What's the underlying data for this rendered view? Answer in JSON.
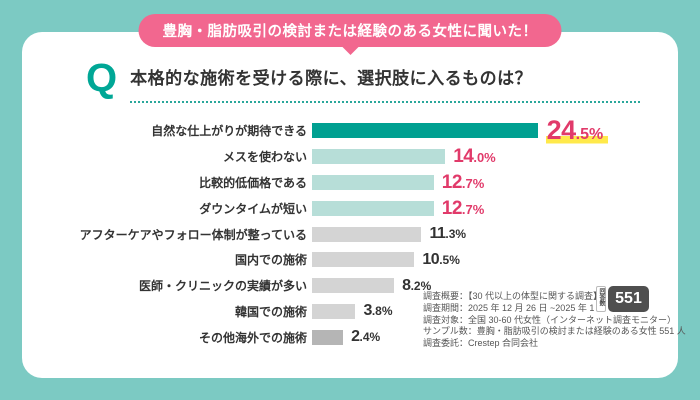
{
  "badge": {
    "label": "豊胸・脂肪吸引の検討または経験のある女性に聞いた！"
  },
  "question": {
    "mark": "Q",
    "text": "本格的な施術を受ける際に、選択肢に入るものは？"
  },
  "chart_data": {
    "type": "bar",
    "orientation": "horizontal",
    "unit": "%",
    "xlim": [
      0,
      25
    ],
    "categories": [
      "自然な仕上がりが期待できる",
      "メスを使わない",
      "比較的低価格である",
      "ダウンタイムが短い",
      "アフターケアやフォロー体制が整っている",
      "国内での施術",
      "医師・クリニックの実績が多い",
      "韓国での施術",
      "その他海外での施術"
    ],
    "values": [
      24.5,
      14.0,
      12.7,
      12.7,
      11.3,
      10.5,
      8.2,
      3.8,
      2.4
    ],
    "emphasis": [
      "primary",
      "secondary",
      "secondary",
      "secondary",
      "neutral",
      "neutral",
      "neutral",
      "neutral",
      "neutral-dark"
    ],
    "legend": "none",
    "grid": false
  },
  "palette": {
    "background_teal": "#7CCAC3",
    "card_white": "#FFFFFF",
    "badge_pink": "#F2678F",
    "accent_teal": "#00A796",
    "bar_primary": "#00A091",
    "bar_secondary": "#B7DED8",
    "bar_neutral": "#D4D4D4",
    "bar_neutral_dark": "#B5B5B5",
    "value_pink": "#E13A6A",
    "highlight_yellow": "#FFE94A",
    "text_dark": "#333333"
  },
  "footnote": {
    "lines": [
      "調査概要：【30 代以上の体型に関する調査】",
      "調査期間：2025 年 12 月 26 日 ~2025 年 1 月 6 日",
      "調査対象：全国 30-60 代女性（インターネット調査モニター）",
      "サンプル数：豊胸・脂肪吸引の検討または経験のある女性 551 人",
      "調査委託：Crestep 合同会社"
    ],
    "respondents_badge": {
      "label": "回答数",
      "count": "551"
    }
  }
}
